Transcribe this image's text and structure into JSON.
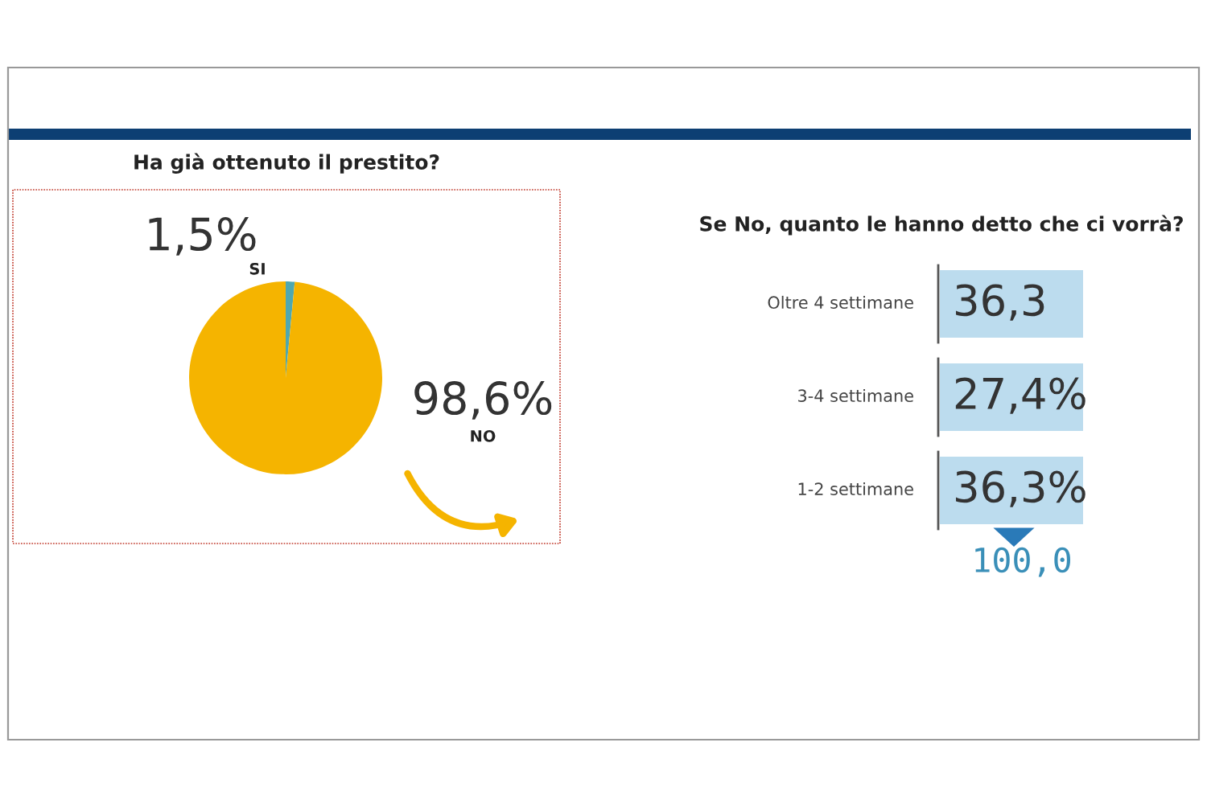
{
  "chart_data": [
    {
      "type": "pie",
      "title": "Ha già ottenuto il prestito?",
      "categories": [
        "SI",
        "NO"
      ],
      "values": [
        1.5,
        98.6
      ],
      "colors": [
        "#4fa8b0",
        "#f5b400"
      ],
      "value_labels": [
        "1,5%",
        "98,6%"
      ]
    },
    {
      "type": "other",
      "title": "Se No, quanto le hanno detto che ci vorrà?",
      "categories": [
        "Oltre 4 settimane",
        "3-4 settimane",
        "1-2 settimane"
      ],
      "values": [
        36.3,
        27.4,
        36.3
      ],
      "value_labels": [
        "36,3",
        "27,4%",
        "36,3%"
      ],
      "color": "#bcdcee",
      "annotations": [
        "100,0"
      ]
    }
  ]
}
